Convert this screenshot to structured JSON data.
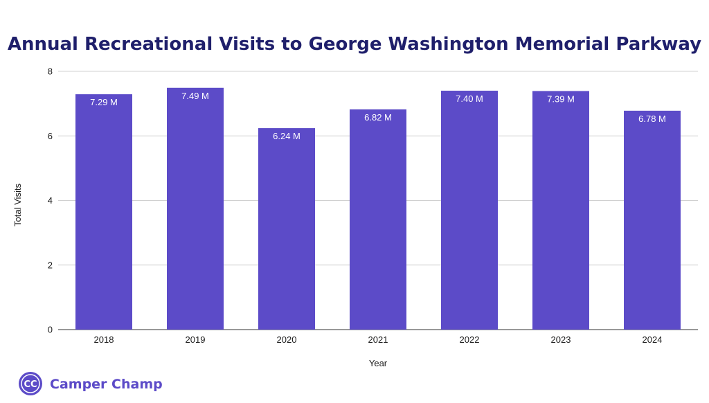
{
  "brand": {
    "name": "Camper Champ",
    "logo_text": "CC",
    "logo_color": "#5c4bc8"
  },
  "colors": {
    "bar": "#5c4bc8",
    "title": "#1f1f6b",
    "grid": "#d0d0d0",
    "baseline": "#333333"
  },
  "chart_data": {
    "type": "bar",
    "title": "Annual Recreational Visits to George Washington Memorial Parkway",
    "xlabel": "Year",
    "ylabel": "Total Visits",
    "categories": [
      "2018",
      "2019",
      "2020",
      "2021",
      "2022",
      "2023",
      "2024"
    ],
    "values": [
      7.29,
      7.49,
      6.24,
      6.82,
      7.4,
      7.39,
      6.78
    ],
    "value_labels": [
      "7.29 M",
      "7.49 M",
      "6.24 M",
      "6.82 M",
      "7.40 M",
      "7.39 M",
      "6.78 M"
    ],
    "ylim": [
      0,
      8
    ],
    "yticks": [
      "0",
      "2",
      "4",
      "6",
      "8"
    ],
    "grid": true,
    "legend": "none"
  }
}
